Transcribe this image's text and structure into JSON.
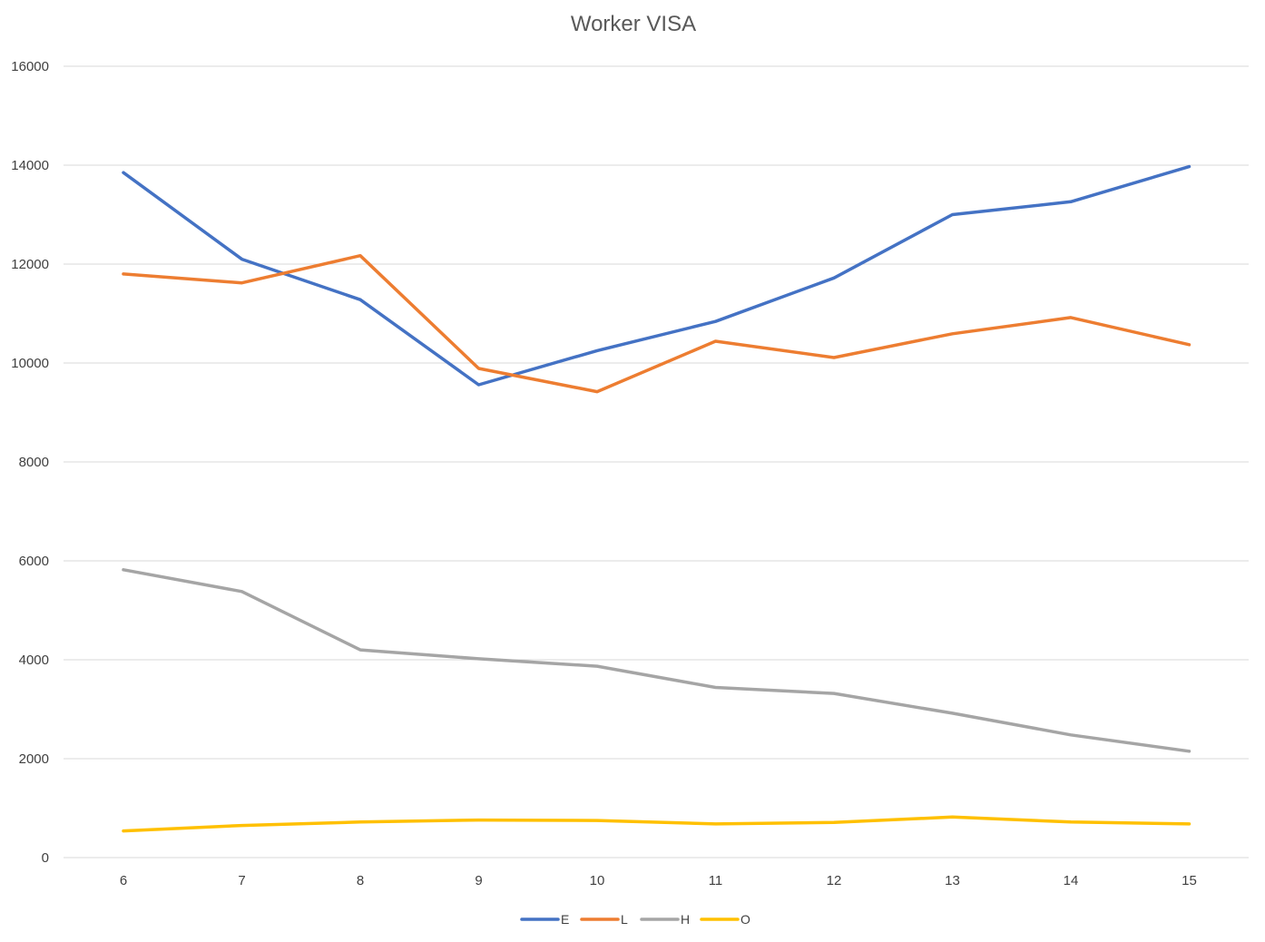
{
  "chart_data": {
    "type": "line",
    "title": "Worker VISA",
    "xlabel": "",
    "ylabel": "",
    "categories": [
      "6",
      "7",
      "8",
      "9",
      "10",
      "11",
      "12",
      "13",
      "14",
      "15"
    ],
    "ylim": [
      0,
      16000
    ],
    "yticks": [
      0,
      2000,
      4000,
      6000,
      8000,
      10000,
      12000,
      14000,
      16000
    ],
    "grid": true,
    "legend_position": "bottom",
    "series": [
      {
        "name": "E",
        "color": "#4472c4",
        "values": [
          13850,
          12100,
          11280,
          9560,
          10250,
          10840,
          11720,
          13000,
          13260,
          13970
        ]
      },
      {
        "name": "L",
        "color": "#ed7d31",
        "values": [
          11800,
          11620,
          12170,
          9890,
          9420,
          10440,
          10110,
          10590,
          10920,
          10370
        ]
      },
      {
        "name": "H",
        "color": "#a5a5a5",
        "values": [
          5820,
          5380,
          4200,
          4020,
          3870,
          3440,
          3320,
          2920,
          2480,
          2150
        ]
      },
      {
        "name": "O",
        "color": "#ffc000",
        "values": [
          540,
          650,
          720,
          760,
          750,
          680,
          710,
          820,
          720,
          680
        ]
      }
    ]
  }
}
